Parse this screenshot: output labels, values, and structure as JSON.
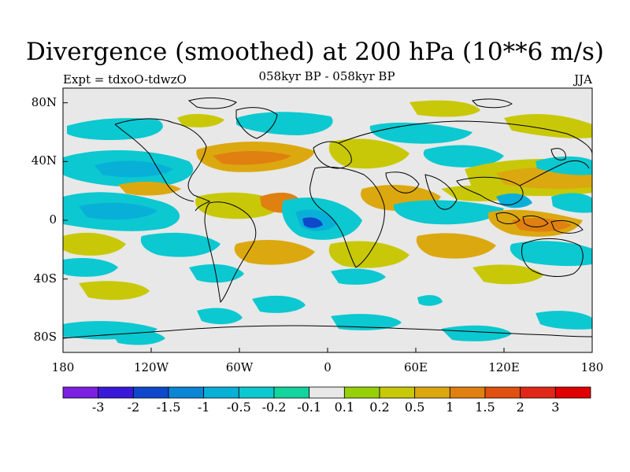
{
  "title": "Divergence (smoothed) at 200 hPa (10**6 m/s)",
  "experiment": "Expt = tdxoO-tdwzO",
  "period": "058kyr BP - 058kyr BP",
  "season": "JJA",
  "lat_ticks": [
    "80N",
    "40N",
    "0",
    "40S",
    "80S"
  ],
  "lon_ticks": [
    "180",
    "120W",
    "60W",
    "0",
    "60E",
    "120E",
    "180"
  ],
  "colorbar": {
    "labels": [
      "-3",
      "-2",
      "-1.5",
      "-1",
      "-0.5",
      "-0.2",
      "-0.1",
      "0.1",
      "0.2",
      "0.5",
      "1",
      "1.5",
      "2",
      "3"
    ],
    "colors": [
      "#7b1fe0",
      "#3a18d8",
      "#1048cc",
      "#0a86d4",
      "#08b0d8",
      "#0cc8d0",
      "#12d49c",
      "#e8e8e8",
      "#96d008",
      "#c8c808",
      "#dca810",
      "#e08010",
      "#e05010",
      "#e02818",
      "#e00000"
    ]
  },
  "colors": {
    "background": "#e8e8e8",
    "coastline": "#000000"
  }
}
